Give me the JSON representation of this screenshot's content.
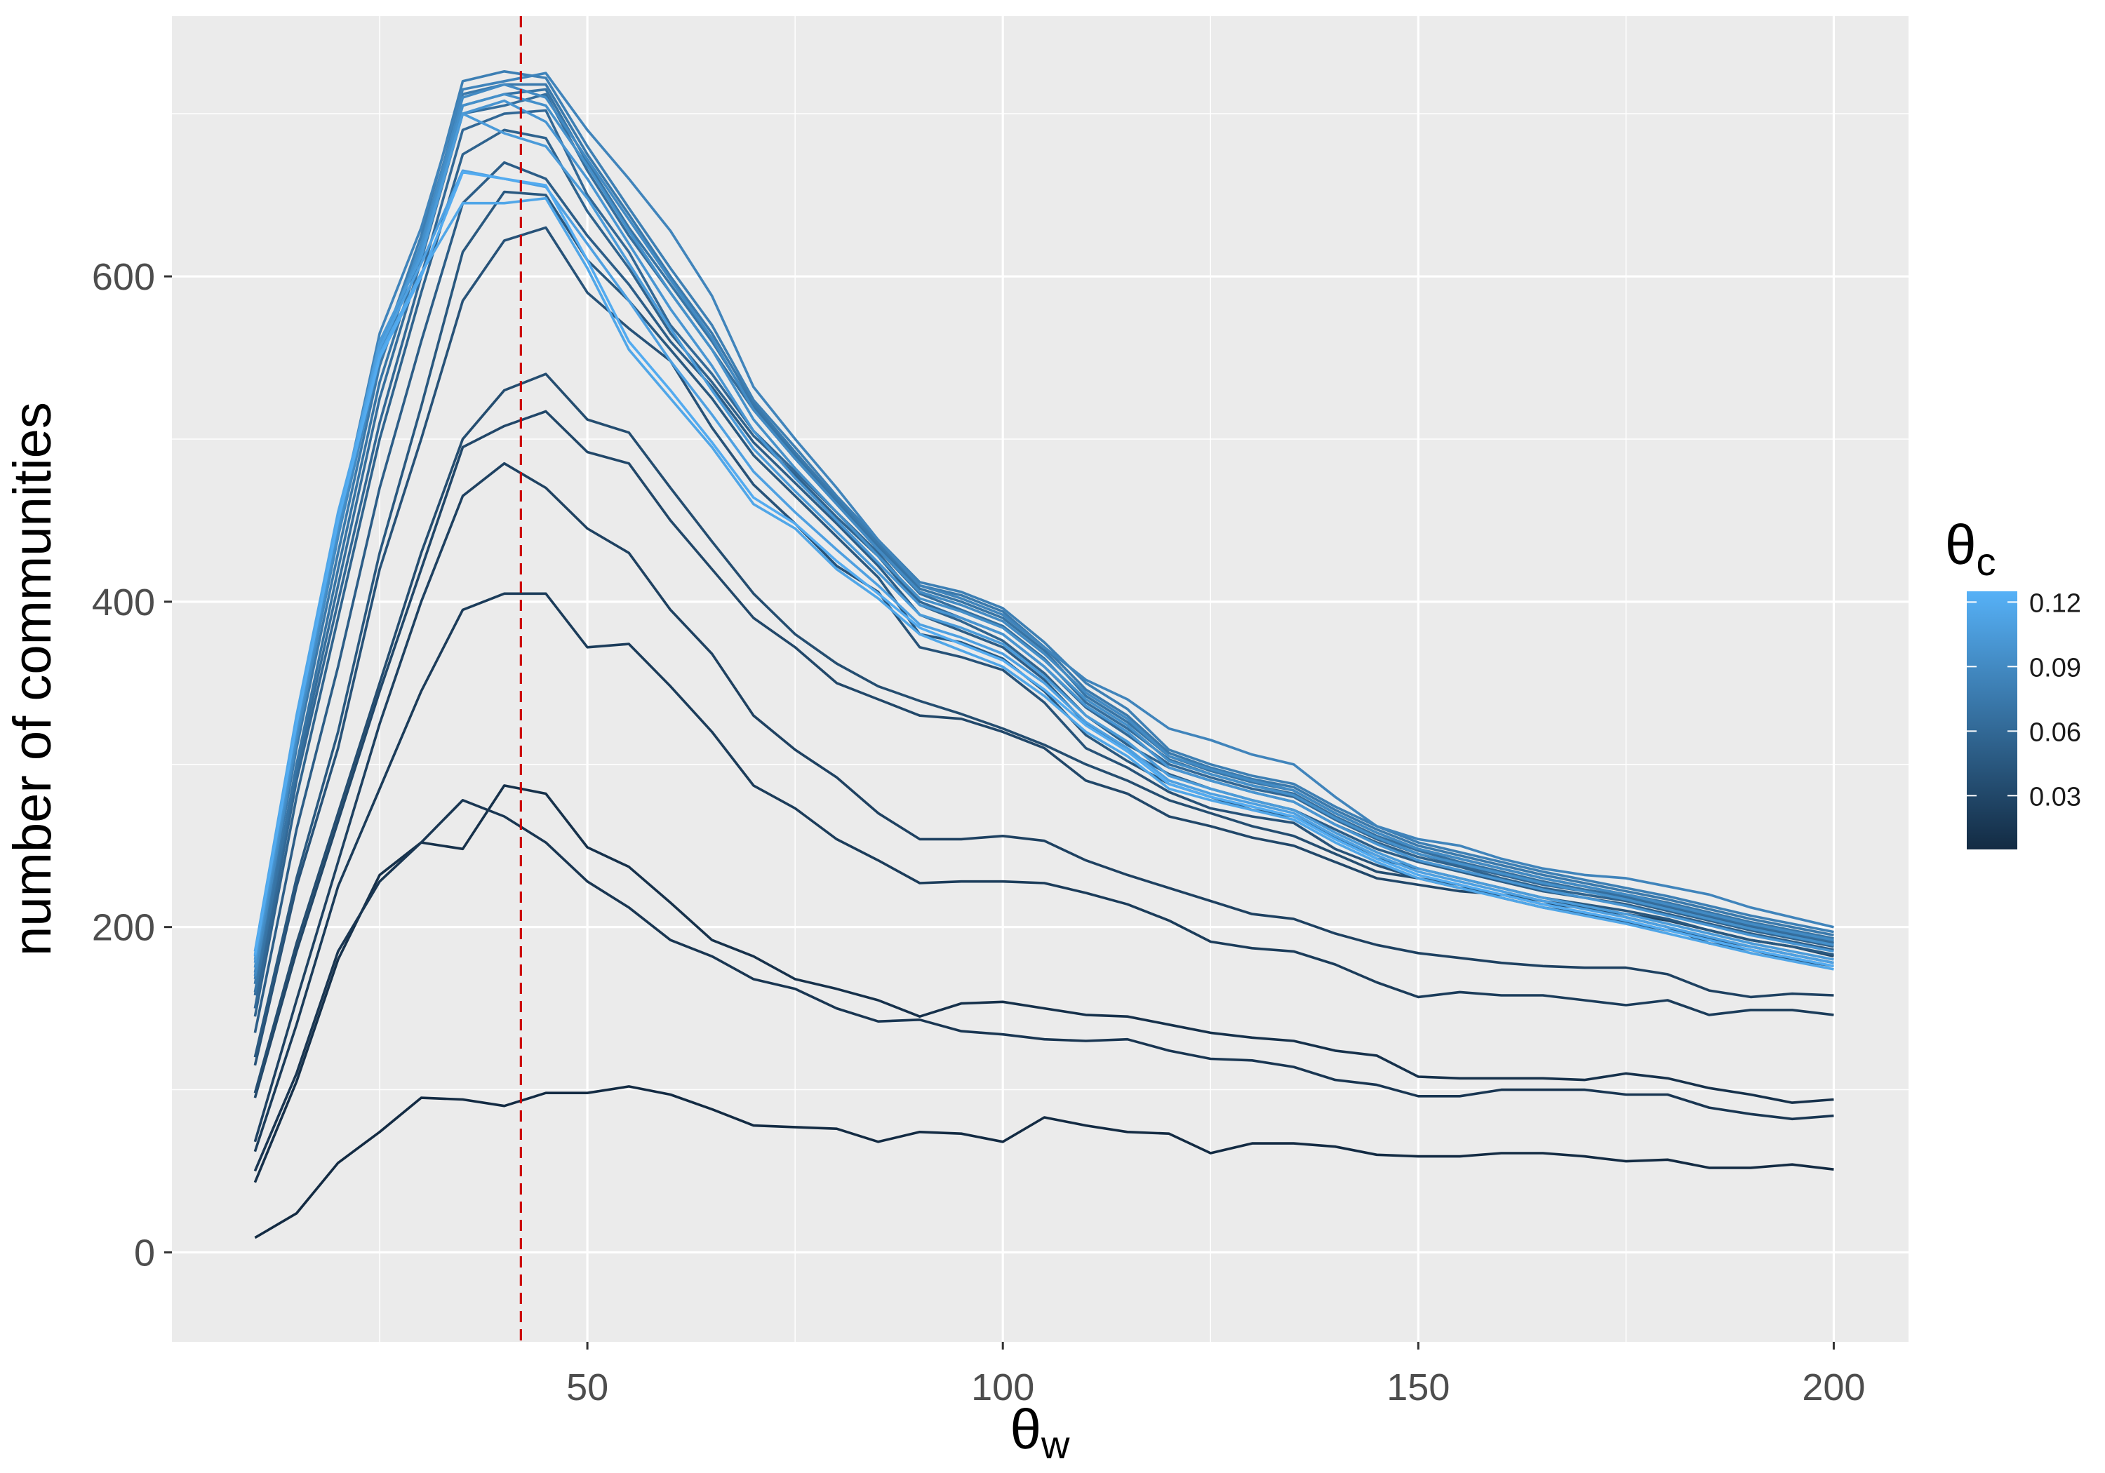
{
  "chart_data": {
    "type": "line",
    "xlabel": "θ",
    "xlabel_sub": "w",
    "ylabel": "number of communities",
    "xlim": [
      0,
      209
    ],
    "ylim": [
      -55,
      760
    ],
    "x_ticks": [
      50,
      100,
      150,
      200
    ],
    "y_ticks": [
      0,
      200,
      400,
      600
    ],
    "grid": true,
    "background": "#ebebeb",
    "reference_line": {
      "x": 42,
      "style": "dashed",
      "color": "#cc0000"
    },
    "legend": {
      "title": "θ",
      "title_sub": "c",
      "placement": "right",
      "color_low": "#132b43",
      "color_high": "#56b1f7",
      "range": [
        0.005,
        0.125
      ],
      "ticks": [
        0.03,
        0.06,
        0.09,
        0.12
      ]
    },
    "x": [
      10,
      15,
      20,
      25,
      30,
      35,
      40,
      45,
      50,
      55,
      60,
      65,
      70,
      75,
      80,
      85,
      90,
      95,
      100,
      105,
      110,
      115,
      120,
      125,
      130,
      135,
      140,
      145,
      150,
      155,
      160,
      165,
      170,
      175,
      180,
      185,
      190,
      195,
      200
    ],
    "series": [
      {
        "theta_c": 0.005,
        "values": [
          9,
          24,
          55,
          74,
          95,
          94,
          90,
          98,
          98,
          102,
          97,
          88,
          78,
          77,
          76,
          68,
          74,
          73,
          68,
          83,
          78,
          74,
          73,
          61,
          67,
          67,
          65,
          60,
          59,
          59,
          61,
          61,
          59,
          56,
          57,
          52,
          52,
          54,
          51
        ]
      },
      {
        "theta_c": 0.01,
        "values": [
          43,
          105,
          180,
          232,
          252,
          248,
          287,
          282,
          249,
          237,
          215,
          192,
          182,
          168,
          162,
          155,
          145,
          153,
          154,
          150,
          146,
          145,
          140,
          135,
          132,
          130,
          124,
          121,
          108,
          107,
          107,
          107,
          106,
          110,
          107,
          101,
          97,
          92,
          94
        ]
      },
      {
        "theta_c": 0.015,
        "values": [
          50,
          110,
          185,
          228,
          252,
          278,
          268,
          252,
          228,
          212,
          192,
          182,
          168,
          162,
          150,
          142,
          143,
          136,
          134,
          131,
          130,
          131,
          124,
          119,
          118,
          114,
          106,
          103,
          96,
          96,
          100,
          100,
          100,
          97,
          97,
          89,
          85,
          82,
          84
        ]
      },
      {
        "theta_c": 0.02,
        "values": [
          62,
          140,
          225,
          285,
          345,
          395,
          405,
          405,
          372,
          374,
          348,
          320,
          287,
          273,
          254,
          241,
          227,
          228,
          228,
          227,
          221,
          214,
          204,
          191,
          187,
          185,
          177,
          166,
          157,
          160,
          158,
          158,
          155,
          152,
          155,
          146,
          149,
          149,
          146
        ]
      },
      {
        "theta_c": 0.025,
        "values": [
          68,
          155,
          240,
          325,
          400,
          465,
          485,
          470,
          445,
          430,
          395,
          368,
          330,
          309,
          292,
          270,
          254,
          254,
          256,
          253,
          241,
          232,
          224,
          216,
          208,
          205,
          196,
          189,
          184,
          181,
          178,
          176,
          175,
          175,
          171,
          161,
          157,
          159,
          158
        ]
      },
      {
        "theta_c": 0.03,
        "values": [
          95,
          185,
          265,
          345,
          420,
          495,
          508,
          517,
          492,
          485,
          450,
          420,
          390,
          372,
          350,
          340,
          330,
          328,
          320,
          310,
          290,
          282,
          268,
          262,
          255,
          250,
          240,
          230,
          226,
          222,
          220,
          214,
          212,
          208,
          204,
          198,
          192,
          188,
          182
        ]
      },
      {
        "theta_c": 0.035,
        "values": [
          98,
          190,
          270,
          350,
          430,
          500,
          530,
          540,
          512,
          504,
          470,
          437,
          405,
          380,
          362,
          348,
          339,
          331,
          322,
          312,
          300,
          290,
          278,
          270,
          262,
          256,
          245,
          234,
          230,
          224,
          220,
          216,
          212,
          206,
          200,
          190,
          186,
          180,
          176
        ]
      },
      {
        "theta_c": 0.04,
        "values": [
          115,
          225,
          310,
          420,
          500,
          585,
          622,
          630,
          590,
          568,
          548,
          507,
          472,
          448,
          422,
          406,
          372,
          366,
          358,
          338,
          310,
          298,
          283,
          273,
          268,
          264,
          248,
          238,
          230,
          226,
          218,
          212,
          208,
          203,
          198,
          193,
          188,
          183,
          178
        ]
      },
      {
        "theta_c": 0.045,
        "values": [
          120,
          230,
          320,
          430,
          520,
          615,
          652,
          650,
          610,
          585,
          555,
          525,
          490,
          465,
          440,
          415,
          380,
          375,
          365,
          345,
          318,
          302,
          288,
          280,
          272,
          268,
          255,
          242,
          236,
          230,
          224,
          218,
          214,
          210,
          205,
          198,
          192,
          188,
          183
        ]
      },
      {
        "theta_c": 0.05,
        "values": [
          135,
          260,
          360,
          470,
          560,
          645,
          670,
          660,
          625,
          595,
          560,
          532,
          498,
          473,
          448,
          422,
          392,
          382,
          372,
          352,
          325,
          308,
          294,
          285,
          278,
          272,
          260,
          248,
          240,
          234,
          228,
          222,
          218,
          214,
          208,
          202,
          196,
          191,
          186
        ]
      },
      {
        "theta_c": 0.055,
        "values": [
          145,
          280,
          390,
          500,
          590,
          675,
          690,
          685,
          640,
          605,
          565,
          535,
          502,
          478,
          452,
          428,
          398,
          388,
          376,
          356,
          330,
          312,
          298,
          290,
          283,
          277,
          263,
          252,
          243,
          237,
          230,
          224,
          220,
          216,
          210,
          204,
          198,
          193,
          188
        ]
      },
      {
        "theta_c": 0.06,
        "values": [
          150,
          290,
          400,
          510,
          600,
          690,
          700,
          702,
          650,
          615,
          570,
          540,
          505,
          480,
          455,
          430,
          400,
          390,
          380,
          360,
          335,
          318,
          300,
          292,
          285,
          280,
          266,
          254,
          245,
          238,
          232,
          226,
          222,
          218,
          212,
          206,
          200,
          195,
          190
        ]
      },
      {
        "theta_c": 0.065,
        "values": [
          158,
          295,
          410,
          525,
          610,
          700,
          705,
          712,
          665,
          625,
          590,
          555,
          518,
          488,
          460,
          432,
          405,
          395,
          385,
          365,
          338,
          322,
          303,
          294,
          287,
          282,
          268,
          256,
          247,
          240,
          234,
          228,
          223,
          219,
          213,
          207,
          201,
          196,
          191
        ]
      },
      {
        "theta_c": 0.07,
        "values": [
          160,
          300,
          420,
          535,
          615,
          705,
          712,
          715,
          670,
          630,
          595,
          560,
          520,
          490,
          462,
          434,
          408,
          400,
          390,
          370,
          342,
          326,
          305,
          296,
          289,
          284,
          270,
          258,
          248,
          242,
          236,
          230,
          225,
          220,
          215,
          209,
          203,
          198,
          193
        ]
      },
      {
        "theta_c": 0.075,
        "values": [
          165,
          310,
          430,
          545,
          620,
          712,
          718,
          718,
          675,
          638,
          600,
          565,
          522,
          492,
          463,
          436,
          410,
          404,
          394,
          372,
          346,
          330,
          307,
          298,
          291,
          286,
          272,
          260,
          250,
          244,
          238,
          232,
          227,
          222,
          217,
          211,
          205,
          200,
          195
        ]
      },
      {
        "theta_c": 0.08,
        "values": [
          168,
          315,
          440,
          552,
          625,
          720,
          726,
          722,
          680,
          642,
          605,
          570,
          524,
          495,
          465,
          438,
          412,
          406,
          396,
          375,
          350,
          334,
          309,
          300,
          293,
          288,
          274,
          262,
          252,
          246,
          240,
          234,
          229,
          224,
          219,
          213,
          207,
          202,
          197
        ]
      },
      {
        "theta_c": 0.085,
        "values": [
          172,
          320,
          448,
          565,
          630,
          715,
          720,
          725,
          690,
          660,
          628,
          588,
          532,
          500,
          470,
          438,
          410,
          402,
          392,
          372,
          352,
          340,
          322,
          315,
          306,
          300,
          280,
          262,
          254,
          250,
          242,
          236,
          232,
          230,
          225,
          220,
          212,
          206,
          200
        ]
      },
      {
        "theta_c": 0.09,
        "values": [
          170,
          315,
          440,
          550,
          620,
          710,
          718,
          710,
          672,
          635,
          598,
          562,
          518,
          488,
          460,
          432,
          406,
          398,
          388,
          368,
          344,
          328,
          305,
          297,
          290,
          284,
          270,
          258,
          248,
          242,
          236,
          230,
          225,
          220,
          214,
          208,
          202,
          197,
          192
        ]
      },
      {
        "theta_c": 0.095,
        "values": [
          175,
          320,
          445,
          555,
          618,
          705,
          712,
          705,
          668,
          628,
          590,
          555,
          512,
          482,
          455,
          428,
          402,
          394,
          384,
          364,
          340,
          324,
          302,
          294,
          287,
          281,
          267,
          255,
          245,
          239,
          233,
          227,
          222,
          217,
          211,
          205,
          199,
          194,
          189
        ]
      },
      {
        "theta_c": 0.1,
        "values": [
          178,
          322,
          448,
          558,
          615,
          700,
          708,
          695,
          660,
          620,
          580,
          545,
          505,
          476,
          450,
          424,
          398,
          390,
          380,
          360,
          336,
          320,
          298,
          290,
          283,
          277,
          263,
          251,
          241,
          235,
          229,
          223,
          218,
          213,
          207,
          201,
          195,
          190,
          185
        ]
      },
      {
        "theta_c": 0.105,
        "values": [
          180,
          325,
          450,
          560,
          612,
          700,
          688,
          680,
          648,
          608,
          568,
          530,
          494,
          468,
          443,
          418,
          392,
          384,
          374,
          354,
          330,
          314,
          293,
          285,
          278,
          272,
          258,
          246,
          236,
          230,
          224,
          218,
          213,
          208,
          202,
          196,
          190,
          185,
          180
        ]
      },
      {
        "theta_c": 0.11,
        "values": [
          182,
          328,
          452,
          556,
          608,
          665,
          660,
          655,
          620,
          585,
          548,
          515,
          480,
          455,
          432,
          410,
          386,
          378,
          368,
          350,
          326,
          310,
          290,
          282,
          276,
          270,
          256,
          244,
          234,
          228,
          222,
          216,
          211,
          206,
          200,
          194,
          188,
          183,
          178
        ]
      },
      {
        "theta_c": 0.115,
        "values": [
          185,
          330,
          455,
          552,
          602,
          645,
          645,
          648,
          605,
          555,
          525,
          495,
          460,
          445,
          420,
          402,
          380,
          370,
          360,
          342,
          320,
          305,
          285,
          278,
          272,
          266,
          252,
          240,
          230,
          224,
          218,
          212,
          207,
          202,
          196,
          190,
          184,
          179,
          174
        ]
      },
      {
        "theta_c": 0.12,
        "values": [
          183,
          325,
          450,
          550,
          600,
          664,
          660,
          656,
          610,
          560,
          530,
          498,
          464,
          448,
          425,
          405,
          384,
          374,
          364,
          346,
          324,
          308,
          288,
          280,
          274,
          268,
          254,
          242,
          232,
          226,
          220,
          214,
          209,
          204,
          198,
          192,
          186,
          181,
          176
        ]
      }
    ]
  }
}
